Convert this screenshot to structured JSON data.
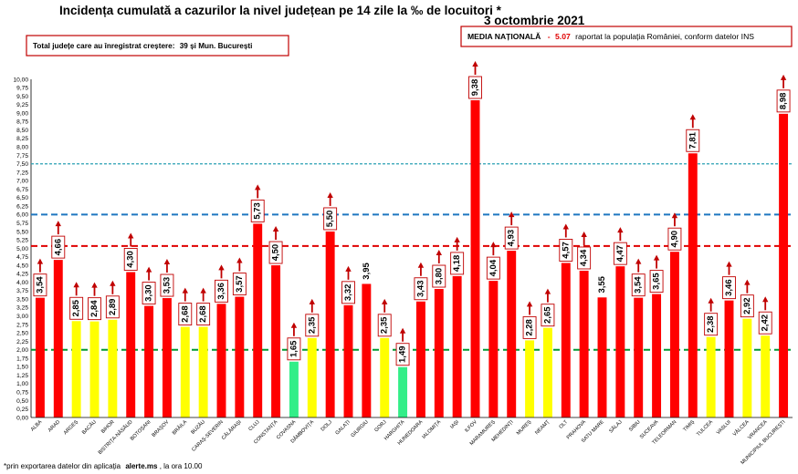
{
  "header": {
    "title": "Incidența cumulată a cazurilor la nivel județean pe 14 zile la ‰ de locuitori *",
    "date": "3 octombrie 2021"
  },
  "info_box": {
    "prefix": "Total județe care au înregistrat creștere:",
    "value": "39 și Mun. București"
  },
  "national_box": {
    "label": "MEDIA NAȚIONALĂ",
    "sep": "-",
    "value": "5.07",
    "suffix": "raportat la populația României, conform datelor INS"
  },
  "footer": {
    "prefix": "*prin exportarea datelor din aplicația",
    "site": "alerte.ms",
    "suffix": ", la ora 10.00"
  },
  "colors": {
    "red": "#ff0000",
    "yellow": "#ffff00",
    "green": "#33ee88",
    "dark_red": "#c00000",
    "ref_green": "#009933",
    "ref_blue": "#1f77c0",
    "ref_teal": "#2aa0b4",
    "ref_red": "#e00000"
  },
  "chart_data": {
    "type": "bar",
    "ylim": [
      0,
      10.0
    ],
    "yticks": [
      "0,00",
      "0,25",
      "0,50",
      "0,75",
      "1,00",
      "1,25",
      "1,50",
      "1,75",
      "2,00",
      "2,25",
      "2,50",
      "2,75",
      "3,00",
      "3,25",
      "3,50",
      "3,75",
      "4,00",
      "4,25",
      "4,50",
      "4,75",
      "5,00",
      "5,25",
      "5,50",
      "5,75",
      "6,00",
      "6,25",
      "6,50",
      "6,75",
      "7,00",
      "7,25",
      "7,50",
      "7,75",
      "8,00",
      "8,25",
      "8,50",
      "8,75",
      "9,00",
      "9,25",
      "9,50",
      "9,75",
      "10,00"
    ],
    "reference_lines": [
      {
        "value": 2.0,
        "color": "green",
        "style": "dashed"
      },
      {
        "value": 5.07,
        "color": "red",
        "style": "dashed"
      },
      {
        "value": 6.0,
        "color": "blue",
        "style": "dashed"
      },
      {
        "value": 7.5,
        "color": "teal",
        "style": "dashed"
      }
    ],
    "categories": [
      "ALBA",
      "ARAD",
      "ARGEȘ",
      "BACĂU",
      "BIHOR",
      "BISTRIȚA-NĂSĂUD",
      "BOTOȘANI",
      "BRAȘOV",
      "BRĂILA",
      "BUZĂU",
      "CARAȘ-SEVERIN",
      "CĂLĂRAȘI",
      "CLUJ",
      "CONSTANȚA",
      "COVASNA",
      "DÂMBOVIȚA",
      "DOLJ",
      "GALAȚI",
      "GIURGIU",
      "GORJ",
      "HARGHITA",
      "HUNEDOARA",
      "IALOMIȚA",
      "IAȘI",
      "ILFOV",
      "MARAMUREȘ",
      "MEHEDINȚI",
      "MUREȘ",
      "NEAMȚ",
      "OLT",
      "PRAHOVA",
      "SATU MARE",
      "SĂLAJ",
      "SIBIU",
      "SUCEAVA",
      "TELEORMAN",
      "TIMIȘ",
      "TULCEA",
      "VASLUI",
      "VÂLCEA",
      "VRANCEA",
      "MUNICIPIUL BUCUREȘTI"
    ],
    "values": [
      3.54,
      4.66,
      2.85,
      2.84,
      2.89,
      4.3,
      3.3,
      3.53,
      2.68,
      2.68,
      3.36,
      3.57,
      5.73,
      4.5,
      1.65,
      2.35,
      5.5,
      3.32,
      3.95,
      2.35,
      1.49,
      3.43,
      3.8,
      4.18,
      9.38,
      4.04,
      4.93,
      2.28,
      2.65,
      4.57,
      4.34,
      3.55,
      4.47,
      3.54,
      3.65,
      4.9,
      7.81,
      2.38,
      3.46,
      2.92,
      2.42,
      8.98
    ],
    "labels": [
      "3,54",
      "4,66",
      "2,85",
      "2,84",
      "2,89",
      "4,30",
      "3,30",
      "3,53",
      "2,68",
      "2,68",
      "3,36",
      "3,57",
      "5,73",
      "4,50",
      "1,65",
      "2,35",
      "5,50",
      "3,32",
      "3,95",
      "2,35",
      "1,49",
      "3,43",
      "3,80",
      "4,18",
      "9,38",
      "4,04",
      "4,93",
      "2,28",
      "2,65",
      "4,57",
      "4,34",
      "3,55",
      "4,47",
      "3,54",
      "3,65",
      "4,90",
      "7,81",
      "2,38",
      "3,46",
      "2,92",
      "2,42",
      "8,98"
    ],
    "colors": [
      "red",
      "red",
      "yellow",
      "yellow",
      "yellow",
      "red",
      "red",
      "red",
      "yellow",
      "yellow",
      "red",
      "red",
      "red",
      "red",
      "green",
      "yellow",
      "red",
      "red",
      "red",
      "yellow",
      "green",
      "red",
      "red",
      "red",
      "red",
      "red",
      "red",
      "yellow",
      "yellow",
      "red",
      "red",
      "red",
      "red",
      "red",
      "red",
      "red",
      "red",
      "yellow",
      "red",
      "yellow",
      "yellow",
      "red"
    ],
    "trend": [
      "up",
      "up",
      "up",
      "up",
      "up",
      "up",
      "up",
      "up",
      "up",
      "up",
      "up",
      "up",
      "up",
      "up",
      "up",
      "up",
      "up",
      "up",
      "none",
      "up",
      "up",
      "up",
      "up",
      "up",
      "up",
      "up",
      "up",
      "up",
      "up",
      "up",
      "up",
      "none",
      "up",
      "up",
      "up",
      "up",
      "up",
      "up",
      "up",
      "up",
      "up",
      "up"
    ],
    "label_boxed": [
      true,
      true,
      true,
      true,
      true,
      true,
      true,
      true,
      true,
      true,
      true,
      true,
      true,
      true,
      true,
      true,
      true,
      true,
      false,
      true,
      true,
      true,
      true,
      true,
      true,
      true,
      true,
      true,
      true,
      true,
      true,
      false,
      true,
      true,
      true,
      true,
      true,
      true,
      true,
      true,
      true,
      true
    ]
  }
}
